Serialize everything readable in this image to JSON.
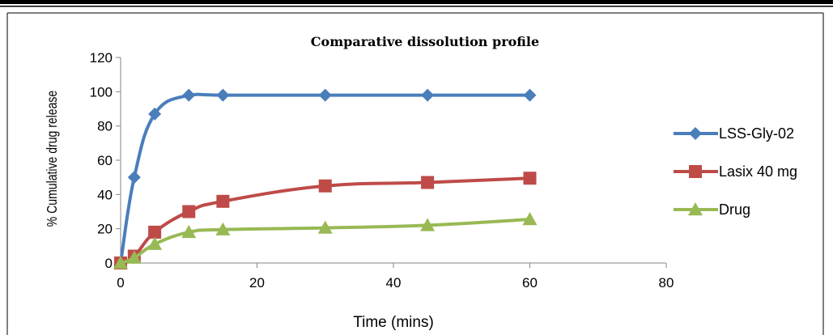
{
  "chart_data": {
    "type": "line",
    "title": "Comparative dissolution profile",
    "xlabel": "Time (mins)",
    "ylabel": "% Cumulative drug release",
    "xlim": [
      0,
      80
    ],
    "ylim": [
      0,
      120
    ],
    "x_ticks": [
      0,
      20,
      40,
      60,
      80
    ],
    "y_ticks": [
      0,
      20,
      40,
      60,
      80,
      100,
      120
    ],
    "grid": false,
    "legend": "right",
    "x": [
      0,
      2,
      5,
      10,
      15,
      30,
      45,
      60
    ],
    "series": [
      {
        "name": "LSS-Gly-02",
        "color": "#4a7ebb",
        "marker": "diamond",
        "values": [
          0,
          50,
          87,
          98,
          98,
          98,
          98,
          98
        ]
      },
      {
        "name": "Lasix 40 mg",
        "color": "#be4b48",
        "marker": "square",
        "values": [
          0,
          4,
          18,
          30,
          36,
          45,
          47,
          49.5
        ]
      },
      {
        "name": "Drug",
        "color": "#98b954",
        "marker": "triangle",
        "values": [
          0,
          3,
          11,
          18,
          19.5,
          20.5,
          22,
          25.5
        ]
      }
    ]
  }
}
